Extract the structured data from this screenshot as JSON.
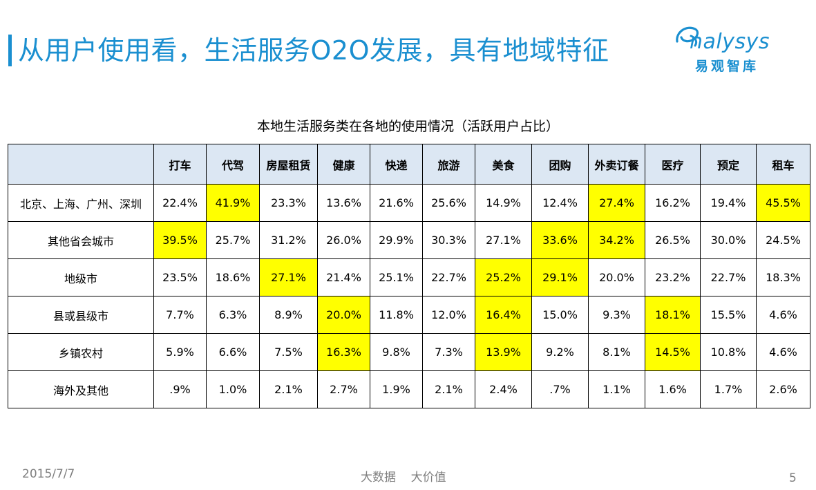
{
  "header": {
    "title": "从用户使用看，生活服务O2O发展，具有地域特征"
  },
  "logo": {
    "text": "nalysys",
    "sub": "易观智库",
    "icon": "analysys-swoosh-icon",
    "color": "#1a8fd0"
  },
  "table": {
    "title": "本地生活服务类在各地的使用情况（活跃用户占比）",
    "header_bg": "#dce7f3",
    "highlight_color": "#ffff00",
    "columns": [
      "打车",
      "代驾",
      "房屋租赁",
      "健康",
      "快递",
      "旅游",
      "美食",
      "团购",
      "外卖订餐",
      "医疗",
      "预定",
      "租车"
    ],
    "rows": [
      {
        "label": "北京、上海、广州、深圳",
        "values": [
          "22.4%",
          "41.9%",
          "23.3%",
          "13.6%",
          "21.6%",
          "25.6%",
          "14.9%",
          "12.4%",
          "27.4%",
          "16.2%",
          "19.4%",
          "45.5%"
        ],
        "highlight": [
          false,
          true,
          false,
          false,
          false,
          false,
          false,
          false,
          true,
          false,
          false,
          true
        ]
      },
      {
        "label": "其他省会城市",
        "values": [
          "39.5%",
          "25.7%",
          "31.2%",
          "26.0%",
          "29.9%",
          "30.3%",
          "27.1%",
          "33.6%",
          "34.2%",
          "26.5%",
          "30.0%",
          "24.5%"
        ],
        "highlight": [
          true,
          false,
          false,
          false,
          false,
          false,
          false,
          true,
          true,
          false,
          false,
          false
        ]
      },
      {
        "label": "地级市",
        "values": [
          "23.5%",
          "18.6%",
          "27.1%",
          "21.4%",
          "25.1%",
          "22.7%",
          "25.2%",
          "29.1%",
          "20.0%",
          "23.2%",
          "22.7%",
          "18.3%"
        ],
        "highlight": [
          false,
          false,
          true,
          false,
          false,
          false,
          true,
          true,
          false,
          false,
          false,
          false
        ]
      },
      {
        "label": "县或县级市",
        "values": [
          "7.7%",
          "6.3%",
          "8.9%",
          "20.0%",
          "11.8%",
          "12.0%",
          "16.4%",
          "15.0%",
          "9.3%",
          "18.1%",
          "15.5%",
          "4.6%"
        ],
        "highlight": [
          false,
          false,
          false,
          true,
          false,
          false,
          true,
          false,
          false,
          true,
          false,
          false
        ]
      },
      {
        "label": "乡镇农村",
        "values": [
          "5.9%",
          "6.6%",
          "7.5%",
          "16.3%",
          "9.8%",
          "7.3%",
          "13.9%",
          "9.2%",
          "8.1%",
          "14.5%",
          "10.8%",
          "4.6%"
        ],
        "highlight": [
          false,
          false,
          false,
          true,
          false,
          false,
          true,
          false,
          false,
          true,
          false,
          false
        ]
      },
      {
        "label": "海外及其他",
        "values": [
          ".9%",
          "1.0%",
          "2.1%",
          "2.7%",
          "1.9%",
          "2.1%",
          "2.4%",
          ".7%",
          "1.1%",
          "1.6%",
          "1.7%",
          "2.6%"
        ],
        "highlight": [
          false,
          false,
          false,
          false,
          false,
          false,
          false,
          false,
          false,
          false,
          false,
          false
        ]
      }
    ]
  },
  "footer": {
    "date": "2015/7/7",
    "center": "大数据    大价值",
    "page": "5"
  }
}
